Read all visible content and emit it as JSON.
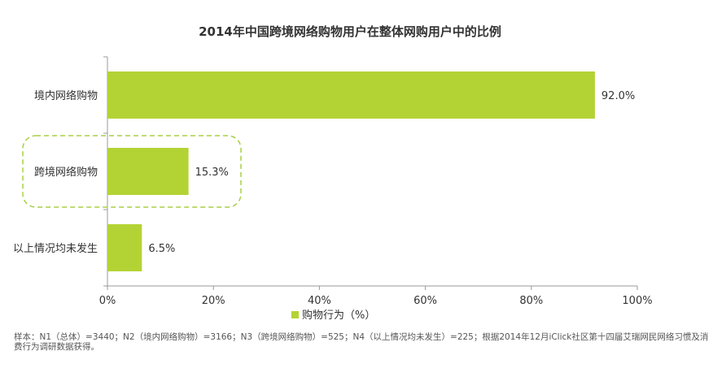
{
  "chart_data": {
    "type": "bar",
    "orientation": "horizontal",
    "title": "2014年中国跨境网络购物用户在整体网购用户中的比例",
    "categories": [
      "境内网络购物",
      "跨境网络购物",
      "以上情况均未发生"
    ],
    "series": [
      {
        "name": "购物行为（%）",
        "values": [
          92.0,
          15.3,
          6.5
        ]
      }
    ],
    "value_labels": [
      "92.0%",
      "15.3%",
      "6.5%"
    ],
    "xlim": [
      0,
      100
    ],
    "x_ticks": [
      "0%",
      "20%",
      "40%",
      "60%",
      "80%",
      "100%"
    ],
    "grid": false,
    "legend_position": "bottom",
    "highlighted_category": "跨境网络购物",
    "colors": {
      "bar": "#b3d334",
      "highlight_border": "#a8cf45",
      "axis": "#999999"
    }
  },
  "footnote": "样本：N1（总体）=3440；N2（境内网络购物）=3166；N3（跨境网络购物）=525；N4（以上情况均未发生）=225；根据2014年12月iClick社区第十四届艾瑞网民网络习惯及消费行为调研数据获得。"
}
